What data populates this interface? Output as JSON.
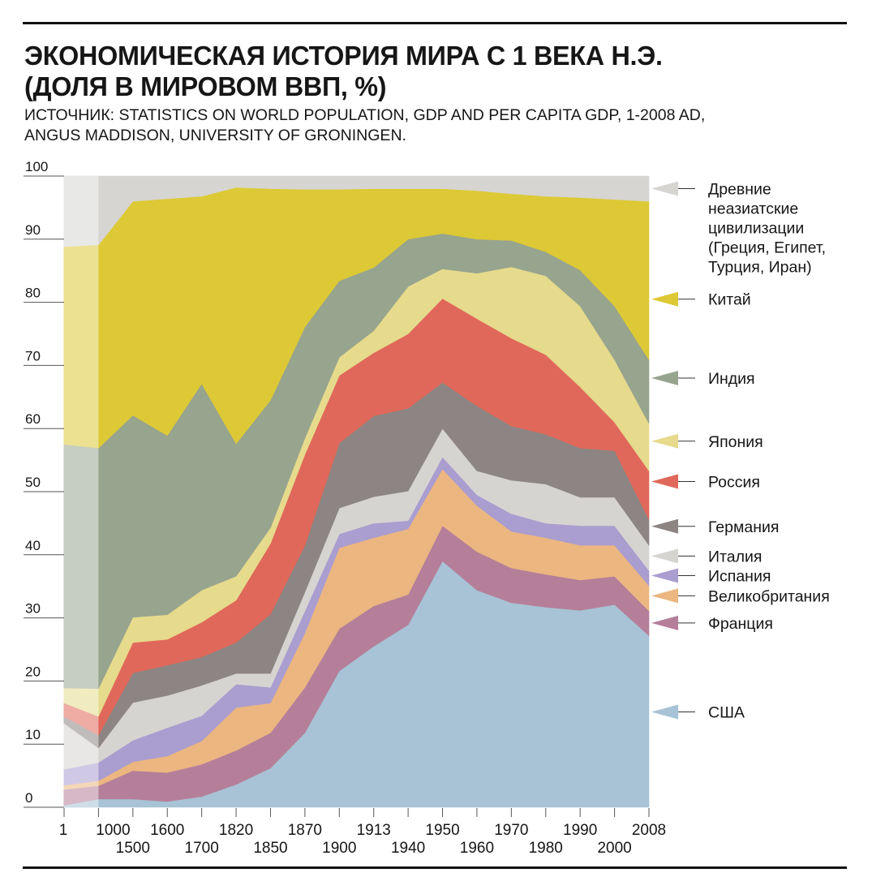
{
  "header": {
    "title_line1": "ЭКОНОМИЧЕСКАЯ ИСТОРИЯ МИРА С 1 ВЕКА Н.Э.",
    "title_line2": "(ДОЛЯ В МИРОВОМ ВВП, %)",
    "source_line1": "ИСТОЧНИК: STATISTICS ON WORLD POPULATION, GDP AND PER CAPITA GDP, 1-2008 AD,",
    "source_line2": "ANGUS MADDISON, UNIVERSITY OF GRONINGEN."
  },
  "chart_data": {
    "type": "area",
    "stacked": true,
    "title": "Экономическая история мира с 1 века н.э. (доля в мировом ВВП, %)",
    "xlabel": "",
    "ylabel": "",
    "ylim": [
      0,
      100
    ],
    "yticks": [
      0,
      10,
      20,
      30,
      40,
      50,
      60,
      70,
      80,
      90,
      100
    ],
    "grid": false,
    "legend_position": "right",
    "categories": [
      "1",
      "1000",
      "1500",
      "1600",
      "1700",
      "1820",
      "1850",
      "1870",
      "1900",
      "1913",
      "1940",
      "1950",
      "1960",
      "1970",
      "1980",
      "1990",
      "2000",
      "2008"
    ],
    "faded_first_segment": true,
    "series": [
      {
        "name": "США",
        "color": "#a7c3d5",
        "values": [
          0.3,
          1.3,
          1.3,
          0.9,
          1.7,
          3.6,
          6.2,
          11.8,
          21.6,
          25.5,
          28.9,
          39.0,
          34.4,
          32.4,
          31.7,
          31.2,
          32.1,
          27.2
        ]
      },
      {
        "name": "Франция",
        "color": "#b57f9a",
        "values": [
          2.5,
          2.1,
          4.5,
          4.6,
          5.1,
          5.4,
          5.6,
          7.2,
          6.7,
          6.4,
          4.8,
          5.6,
          6.1,
          5.5,
          5.2,
          4.8,
          4.5,
          3.9
        ]
      },
      {
        "name": "Великобритания",
        "color": "#ebb680",
        "values": [
          0.7,
          0.8,
          1.4,
          2.6,
          3.7,
          6.8,
          4.7,
          8.6,
          12.8,
          10.8,
          10.4,
          9.0,
          7.3,
          5.8,
          5.8,
          5.5,
          4.9,
          4.0
        ]
      },
      {
        "name": "Испания",
        "color": "#aa9dcf",
        "values": [
          2.5,
          2.9,
          3.4,
          4.5,
          4.0,
          3.7,
          2.5,
          3.5,
          2.2,
          2.3,
          1.3,
          1.9,
          1.7,
          2.8,
          2.3,
          3.1,
          3.1,
          2.4
        ]
      },
      {
        "name": "Италия",
        "color": "#d5d4d1",
        "values": [
          7.3,
          2.3,
          6.0,
          5.1,
          4.8,
          1.7,
          2.2,
          3.0,
          4.1,
          4.2,
          4.7,
          4.5,
          3.8,
          5.3,
          6.2,
          4.5,
          4.5,
          4.0
        ]
      },
      {
        "name": "Германия",
        "color": "#8c8583",
        "values": [
          1.1,
          2.0,
          4.7,
          4.8,
          4.5,
          4.9,
          9.4,
          7.4,
          10.3,
          12.8,
          13.1,
          7.3,
          10.3,
          8.6,
          7.9,
          7.8,
          7.4,
          4.1
        ]
      },
      {
        "name": "Россия",
        "color": "#e0685a",
        "values": [
          2.1,
          3.0,
          4.8,
          4.1,
          5.5,
          6.7,
          11.2,
          14.4,
          10.7,
          10.0,
          11.8,
          13.3,
          13.8,
          13.9,
          12.6,
          9.7,
          4.5,
          7.7
        ]
      },
      {
        "name": "Япония",
        "color": "#e6da8c",
        "values": [
          2.4,
          4.4,
          4.0,
          3.9,
          5.1,
          3.8,
          2.5,
          2.6,
          2.9,
          3.5,
          7.5,
          4.7,
          7.2,
          11.3,
          12.5,
          12.8,
          9.9,
          7.5
        ]
      },
      {
        "name": "Индия",
        "color": "#97a48e",
        "values": [
          38.6,
          38.1,
          32.0,
          28.4,
          32.7,
          21.0,
          20.2,
          17.6,
          12.1,
          10.0,
          7.5,
          5.6,
          5.4,
          4.2,
          3.8,
          5.7,
          8.5,
          10.1
        ]
      },
      {
        "name": "Китай",
        "color": "#ddc935",
        "values": [
          31.3,
          32.2,
          33.9,
          37.5,
          29.7,
          40.6,
          33.5,
          21.8,
          14.5,
          12.5,
          8.0,
          7.1,
          7.7,
          7.4,
          8.8,
          11.5,
          16.9,
          25.1
        ]
      },
      {
        "name": "Древние неазиатские цивилизации (Греция, Египет, Турция, Иран)",
        "color": "#d6d5d2",
        "values": [
          11.2,
          10.9,
          4.0,
          3.6,
          3.2,
          1.8,
          2.0,
          2.1,
          2.1,
          2.0,
          2.0,
          2.0,
          2.3,
          2.8,
          3.2,
          3.4,
          3.7,
          4.0
        ]
      }
    ],
    "legend": [
      {
        "series": "Древние неазиатские цивилизации (Греция, Египет, Турция, Иран)",
        "lines": [
          "Древние",
          "неазиатские",
          "цивилизации",
          "(Греция, Египет,",
          "Турция, Иран)"
        ],
        "color": "#d6d5d2",
        "at_value": 98
      },
      {
        "series": "Китай",
        "lines": [
          "Китай"
        ],
        "color": "#ddc935",
        "at_value": 80.5
      },
      {
        "series": "Индия",
        "lines": [
          "Индия"
        ],
        "color": "#97a48e",
        "at_value": 68
      },
      {
        "series": "Япония",
        "lines": [
          "Япония"
        ],
        "color": "#e6da8c",
        "at_value": 58
      },
      {
        "series": "Россия",
        "lines": [
          "Россия"
        ],
        "color": "#e0685a",
        "at_value": 51.6
      },
      {
        "series": "Германия",
        "lines": [
          "Германия"
        ],
        "color": "#8c8583",
        "at_value": 44.5
      },
      {
        "series": "Италия",
        "lines": [
          "Италия"
        ],
        "color": "#d5d4d1",
        "at_value": 39.8
      },
      {
        "series": "Испания",
        "lines": [
          "Испания"
        ],
        "color": "#aa9dcf",
        "at_value": 36.7
      },
      {
        "series": "Великобритания",
        "lines": [
          "Великобритания"
        ],
        "color": "#ebb680",
        "at_value": 33.5
      },
      {
        "series": "Франция",
        "lines": [
          "Франция"
        ],
        "color": "#b57f9a",
        "at_value": 29.2
      },
      {
        "series": "США",
        "lines": [
          "США"
        ],
        "color": "#a7c3d5",
        "at_value": 15.1
      }
    ]
  }
}
